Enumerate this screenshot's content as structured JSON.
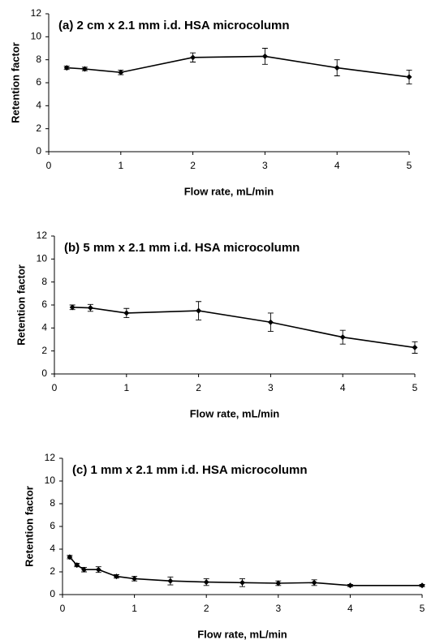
{
  "chart_data": [
    {
      "type": "line",
      "title": "(a) 2 cm x 2.1 mm i.d. HSA microcolumn",
      "x_label": "Flow rate, mL/min",
      "y_label": "Retention factor",
      "x": [
        0.25,
        0.5,
        1,
        2,
        3,
        4,
        5
      ],
      "series": [
        {
          "color": "#000000",
          "values": [
            7.3,
            7.2,
            6.9,
            8.2,
            8.3,
            7.3,
            6.5
          ],
          "errors": [
            0.15,
            0.15,
            0.2,
            0.4,
            0.7,
            0.7,
            0.6
          ]
        }
      ],
      "xlim": [
        0,
        5
      ],
      "ylim": [
        0,
        12
      ],
      "xticks": [
        0,
        1,
        2,
        3,
        4,
        5
      ],
      "yticks": [
        0,
        2,
        4,
        6,
        8,
        10,
        12
      ]
    },
    {
      "type": "line",
      "title": "(b) 5 mm x 2.1 mm i.d. HSA microcolumn",
      "x_label": "Flow rate, mL/min",
      "y_label": "Retention factor",
      "x": [
        0.25,
        0.5,
        1,
        2,
        3,
        4,
        5
      ],
      "series": [
        {
          "color": "#000000",
          "values": [
            5.8,
            5.75,
            5.3,
            5.5,
            4.5,
            3.2,
            2.3
          ],
          "errors": [
            0.2,
            0.3,
            0.4,
            0.8,
            0.8,
            0.6,
            0.5
          ]
        }
      ],
      "xlim": [
        0,
        5
      ],
      "ylim": [
        0,
        12
      ],
      "xticks": [
        0,
        1,
        2,
        3,
        4,
        5
      ],
      "yticks": [
        0,
        2,
        4,
        6,
        8,
        10,
        12
      ]
    },
    {
      "type": "line",
      "title": "(c) 1 mm x 2.1 mm i.d. HSA microcolumn",
      "x_label": "Flow rate, mL/min",
      "y_label": "Retention factor",
      "x": [
        0.1,
        0.2,
        0.3,
        0.5,
        0.75,
        1,
        1.5,
        2,
        2.5,
        3,
        3.5,
        4,
        5
      ],
      "series": [
        {
          "color": "#000000",
          "values": [
            3.3,
            2.6,
            2.2,
            2.2,
            1.6,
            1.4,
            1.2,
            1.1,
            1.05,
            1.0,
            1.05,
            0.8,
            0.8
          ],
          "errors": [
            0.15,
            0.15,
            0.2,
            0.25,
            0.15,
            0.2,
            0.35,
            0.3,
            0.35,
            0.2,
            0.25,
            0.1,
            0.1
          ]
        }
      ],
      "xlim": [
        0,
        5
      ],
      "ylim": [
        0,
        12
      ],
      "xticks": [
        0,
        1,
        2,
        3,
        4,
        5
      ],
      "yticks": [
        0,
        2,
        4,
        6,
        8,
        10,
        12
      ]
    }
  ]
}
